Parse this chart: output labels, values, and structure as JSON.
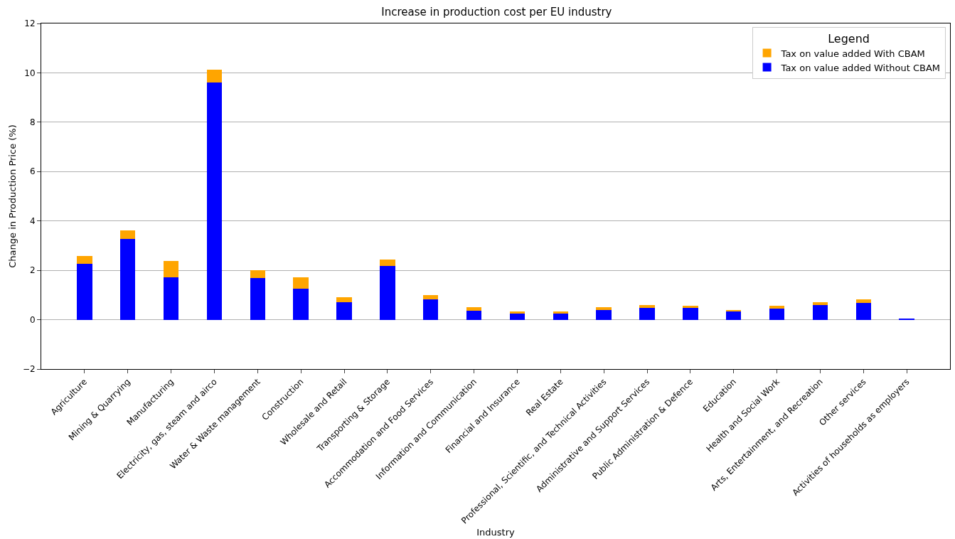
{
  "chart_data": {
    "type": "bar",
    "stacked": true,
    "title": "Increase in production cost per EU industry",
    "xlabel": "Industry",
    "ylabel": "Change in Production Price (%)",
    "legend_title": "Legend",
    "legend": "top right",
    "grid": "y",
    "categories": [
      "Agriculture",
      "Mining & Quarrying",
      "Manufacturing",
      "Electricity, gas, steam and airco",
      "Water & Waste management",
      "Construction",
      "Wholesale and Retail",
      "Transporting & Storage",
      "Accommodation and Food Services",
      "Information and Communication",
      "Financial and Insurance",
      "Real Estate",
      "Professional, Scientific, and Technical Activities",
      "Administrative and Support Services",
      "Public Administration & Defence",
      "Education",
      "Health and Social Work",
      "Arts, Entertainment, and Recreation",
      "Other services",
      "Activities of households as employers"
    ],
    "series": [
      {
        "name": "Tax on value added Without CBAM",
        "color": "#0000ff",
        "values": [
          2.25,
          3.28,
          1.72,
          9.6,
          1.69,
          1.26,
          0.72,
          2.19,
          0.83,
          0.35,
          0.26,
          0.26,
          0.38,
          0.47,
          0.47,
          0.32,
          0.45,
          0.6,
          0.69,
          0.04
        ]
      },
      {
        "name": "Tax on value added With CBAM",
        "color": "#ffa500",
        "values": [
          0.32,
          0.35,
          0.67,
          0.54,
          0.3,
          0.46,
          0.18,
          0.26,
          0.17,
          0.15,
          0.06,
          0.06,
          0.12,
          0.13,
          0.08,
          0.06,
          0.1,
          0.1,
          0.14,
          0
        ]
      }
    ],
    "ylim": [
      -2,
      12
    ],
    "yticks": [
      {
        "value": -2,
        "label": "−2"
      },
      0,
      2,
      4,
      6,
      8,
      10,
      12
    ]
  }
}
